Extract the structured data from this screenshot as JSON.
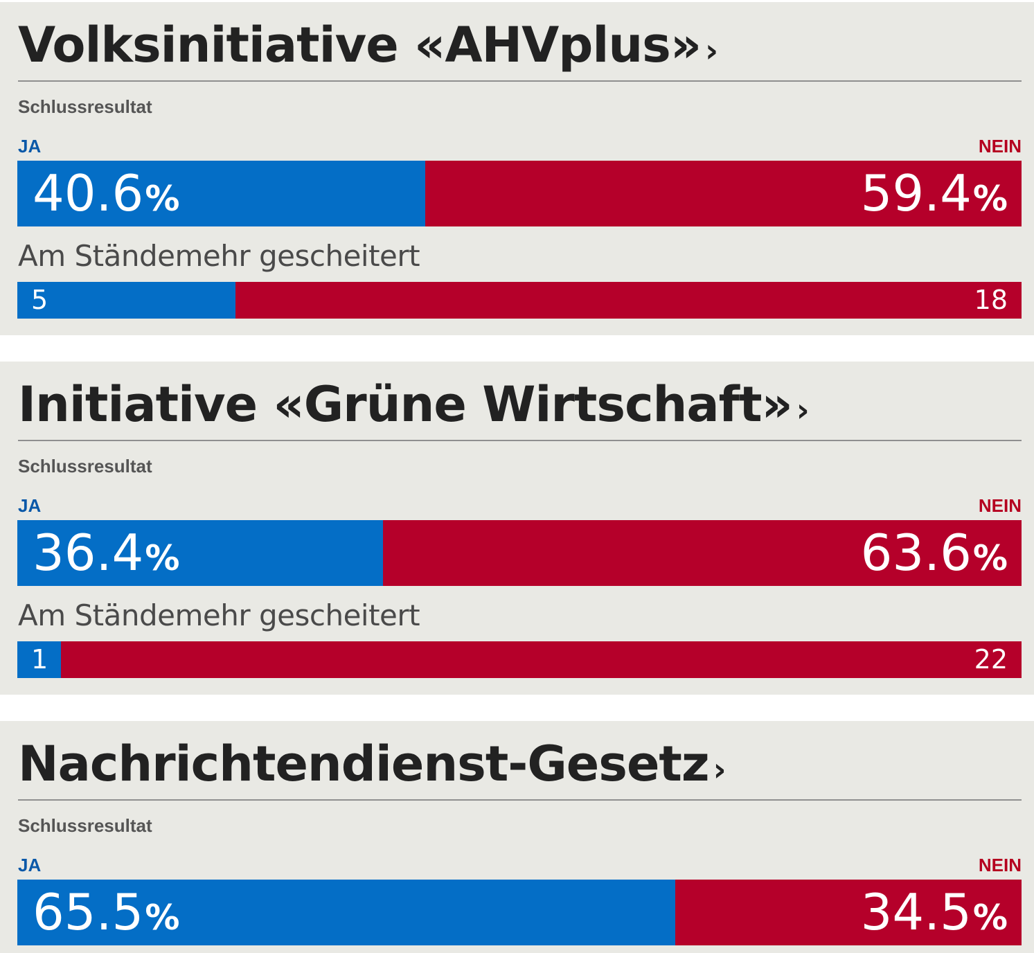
{
  "labels": {
    "status": "Schlussresultat",
    "ja": "JA",
    "nein": "NEIN",
    "percent": "%",
    "chevron": "›"
  },
  "colors": {
    "ja": "#046ec6",
    "nein": "#b5002a",
    "card_bg": "#e9e9e4"
  },
  "votes": [
    {
      "title": "Volksinitiative «AHVplus»",
      "ja_percent": "40.6",
      "nein_percent": "59.4",
      "staende_text": "Am Ständemehr gescheitert",
      "staende_ja": "5",
      "staende_nein": "18"
    },
    {
      "title": "Initiative «Grüne Wirtschaft»",
      "ja_percent": "36.4",
      "nein_percent": "63.6",
      "staende_text": "Am Ständemehr gescheitert",
      "staende_ja": "1",
      "staende_nein": "22"
    },
    {
      "title": "Nachrichtendienst-Gesetz",
      "ja_percent": "65.5",
      "nein_percent": "34.5"
    }
  ]
}
